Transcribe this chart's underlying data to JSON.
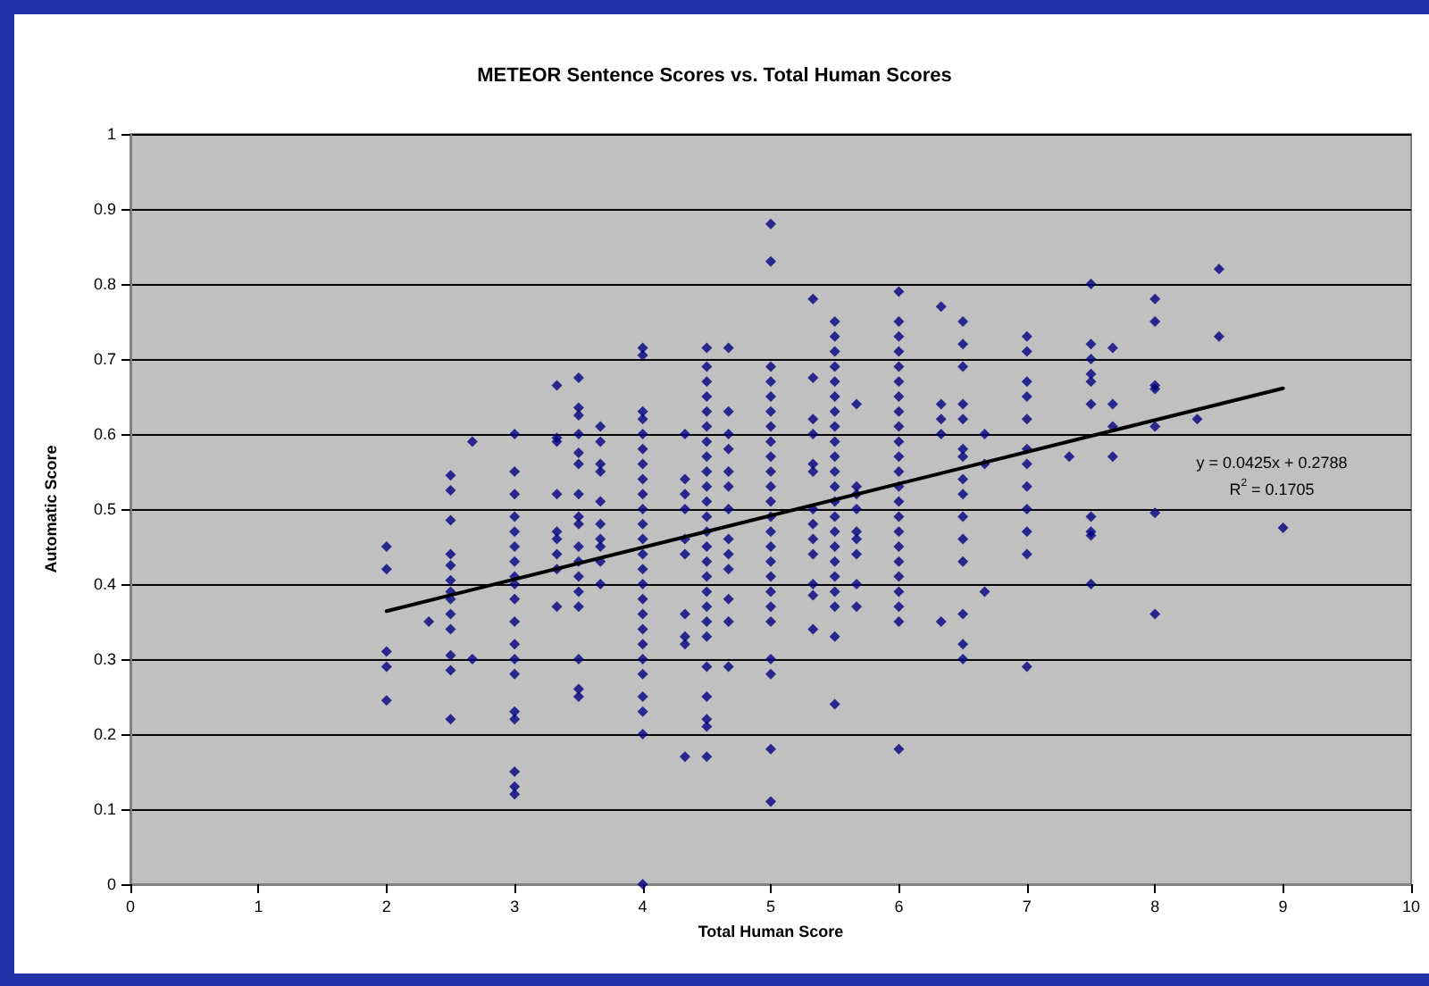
{
  "chart_data": {
    "type": "scatter",
    "title": "METEOR Sentence Scores vs. Total Human Scores",
    "xlabel": "Total Human Score",
    "ylabel": "Automatic Score",
    "xlim": [
      0,
      10
    ],
    "xticks": [
      0,
      1,
      2,
      3,
      4,
      5,
      6,
      7,
      8,
      9,
      10
    ],
    "ylim": [
      0,
      1
    ],
    "yticks": [
      0,
      0.1,
      0.2,
      0.3,
      0.4,
      0.5,
      0.6,
      0.7,
      0.8,
      0.9,
      1
    ],
    "grid": "y",
    "line_style": "solid",
    "annotations": [
      "y = 0.0425x + 0.2788",
      "R$^{2}$ = 0.1705"
    ],
    "series": [
      {
        "color": "#000080",
        "marker": "diamond",
        "x": [
          2,
          2,
          2,
          2,
          2,
          2.33,
          2.5,
          2.5,
          2.5,
          2.5,
          2.5,
          2.5,
          2.5,
          2.5,
          2.5,
          2.5,
          2.5,
          2.5,
          2.5,
          2.67,
          2.67,
          3,
          3,
          3,
          3,
          3,
          3,
          3,
          3,
          3,
          3,
          3,
          3,
          3,
          3,
          3,
          3,
          3,
          3,
          3,
          3.33,
          3.33,
          3.33,
          3.33,
          3.33,
          3.33,
          3.33,
          3.33,
          3.33,
          3.5,
          3.5,
          3.5,
          3.5,
          3.5,
          3.5,
          3.5,
          3.5,
          3.5,
          3.5,
          3.5,
          3.5,
          3.5,
          3.5,
          3.5,
          3.5,
          3.5,
          3.67,
          3.67,
          3.67,
          3.67,
          3.67,
          3.67,
          3.67,
          3.67,
          3.67,
          3.67,
          4,
          4,
          4,
          4,
          4,
          4,
          4,
          4,
          4,
          4,
          4,
          4,
          4,
          4,
          4,
          4,
          4,
          4,
          4,
          4,
          4,
          4,
          4,
          4,
          4,
          4.33,
          4.33,
          4.33,
          4.33,
          4.33,
          4.33,
          4.33,
          4.33,
          4.33,
          4.33,
          4.5,
          4.5,
          4.5,
          4.5,
          4.5,
          4.5,
          4.5,
          4.5,
          4.5,
          4.5,
          4.5,
          4.5,
          4.5,
          4.5,
          4.5,
          4.5,
          4.5,
          4.5,
          4.5,
          4.5,
          4.5,
          4.5,
          4.5,
          4.5,
          4.5,
          4.67,
          4.67,
          4.67,
          4.67,
          4.67,
          4.67,
          4.67,
          4.67,
          4.67,
          4.67,
          4.67,
          4.67,
          4.67,
          5,
          5,
          5,
          5,
          5,
          5,
          5,
          5,
          5,
          5,
          5,
          5,
          5,
          5,
          5,
          5,
          5,
          5,
          5,
          5,
          5,
          5,
          5,
          5,
          5.33,
          5.33,
          5.33,
          5.33,
          5.33,
          5.33,
          5.33,
          5.33,
          5.33,
          5.33,
          5.33,
          5.33,
          5.33,
          5.5,
          5.5,
          5.5,
          5.5,
          5.5,
          5.5,
          5.5,
          5.5,
          5.5,
          5.5,
          5.5,
          5.5,
          5.5,
          5.5,
          5.5,
          5.5,
          5.5,
          5.5,
          5.5,
          5.5,
          5.5,
          5.5,
          5.67,
          5.67,
          5.67,
          5.67,
          5.67,
          5.67,
          5.67,
          5.67,
          5.67,
          6,
          6,
          6,
          6,
          6,
          6,
          6,
          6,
          6,
          6,
          6,
          6,
          6,
          6,
          6,
          6,
          6,
          6,
          6,
          6,
          6,
          6,
          6,
          6.33,
          6.33,
          6.33,
          6.33,
          6.33,
          6.5,
          6.5,
          6.5,
          6.5,
          6.5,
          6.5,
          6.5,
          6.5,
          6.5,
          6.5,
          6.5,
          6.5,
          6.5,
          6.5,
          6.5,
          6.67,
          6.67,
          6.67,
          7,
          7,
          7,
          7,
          7,
          7,
          7,
          7,
          7,
          7,
          7,
          7,
          7.33,
          7.5,
          7.5,
          7.5,
          7.5,
          7.5,
          7.5,
          7.5,
          7.5,
          7.5,
          7.5,
          7.67,
          7.67,
          7.67,
          7.67,
          8,
          8,
          8,
          8,
          8,
          8,
          8,
          8.33,
          8.5,
          8.5,
          9
        ],
        "values": [
          0.45,
          0.42,
          0.31,
          0.29,
          0.245,
          0.35,
          0.545,
          0.525,
          0.485,
          0.44,
          0.425,
          0.405,
          0.39,
          0.38,
          0.36,
          0.34,
          0.305,
          0.285,
          0.22,
          0.59,
          0.3,
          0.6,
          0.55,
          0.52,
          0.49,
          0.47,
          0.45,
          0.43,
          0.41,
          0.4,
          0.38,
          0.35,
          0.32,
          0.3,
          0.28,
          0.23,
          0.22,
          0.15,
          0.13,
          0.12,
          0.665,
          0.595,
          0.59,
          0.52,
          0.47,
          0.46,
          0.44,
          0.42,
          0.37,
          0.675,
          0.635,
          0.625,
          0.6,
          0.575,
          0.56,
          0.52,
          0.49,
          0.48,
          0.45,
          0.43,
          0.41,
          0.39,
          0.37,
          0.3,
          0.26,
          0.25,
          0.61,
          0.59,
          0.56,
          0.55,
          0.51,
          0.48,
          0.46,
          0.45,
          0.43,
          0.4,
          0.715,
          0.705,
          0.63,
          0.62,
          0.6,
          0.58,
          0.56,
          0.54,
          0.52,
          0.5,
          0.48,
          0.46,
          0.44,
          0.42,
          0.4,
          0.38,
          0.36,
          0.34,
          0.32,
          0.3,
          0.28,
          0.25,
          0.23,
          0.2,
          0,
          0.6,
          0.54,
          0.52,
          0.5,
          0.46,
          0.44,
          0.36,
          0.33,
          0.32,
          0.17,
          0.715,
          0.69,
          0.67,
          0.65,
          0.63,
          0.61,
          0.59,
          0.57,
          0.55,
          0.53,
          0.51,
          0.49,
          0.47,
          0.45,
          0.43,
          0.41,
          0.39,
          0.37,
          0.35,
          0.33,
          0.29,
          0.25,
          0.22,
          0.21,
          0.17,
          0.715,
          0.63,
          0.6,
          0.58,
          0.55,
          0.53,
          0.5,
          0.46,
          0.44,
          0.42,
          0.38,
          0.35,
          0.29,
          0.88,
          0.83,
          0.69,
          0.67,
          0.65,
          0.63,
          0.61,
          0.59,
          0.57,
          0.55,
          0.53,
          0.51,
          0.49,
          0.47,
          0.45,
          0.43,
          0.41,
          0.39,
          0.37,
          0.35,
          0.3,
          0.28,
          0.18,
          0.11,
          0.78,
          0.675,
          0.62,
          0.6,
          0.56,
          0.55,
          0.5,
          0.48,
          0.46,
          0.44,
          0.4,
          0.385,
          0.34,
          0.75,
          0.73,
          0.71,
          0.69,
          0.67,
          0.65,
          0.63,
          0.61,
          0.59,
          0.57,
          0.55,
          0.53,
          0.51,
          0.49,
          0.47,
          0.45,
          0.43,
          0.41,
          0.39,
          0.37,
          0.33,
          0.24,
          0.64,
          0.53,
          0.52,
          0.5,
          0.47,
          0.46,
          0.44,
          0.4,
          0.37,
          0.79,
          0.75,
          0.73,
          0.71,
          0.69,
          0.67,
          0.65,
          0.63,
          0.61,
          0.59,
          0.57,
          0.55,
          0.53,
          0.51,
          0.49,
          0.47,
          0.45,
          0.43,
          0.41,
          0.39,
          0.37,
          0.35,
          0.18,
          0.77,
          0.64,
          0.62,
          0.6,
          0.35,
          0.75,
          0.72,
          0.69,
          0.64,
          0.62,
          0.58,
          0.57,
          0.54,
          0.52,
          0.49,
          0.46,
          0.43,
          0.36,
          0.32,
          0.3,
          0.6,
          0.56,
          0.39,
          0.73,
          0.71,
          0.67,
          0.65,
          0.62,
          0.58,
          0.56,
          0.53,
          0.5,
          0.47,
          0.44,
          0.29,
          0.57,
          0.8,
          0.72,
          0.7,
          0.68,
          0.67,
          0.64,
          0.49,
          0.47,
          0.465,
          0.4,
          0.715,
          0.64,
          0.61,
          0.57,
          0.78,
          0.75,
          0.665,
          0.66,
          0.61,
          0.495,
          0.36,
          0.62,
          0.82,
          0.73,
          0.475
        ]
      },
      {
        "type": "line",
        "marker": "none",
        "color": "#000000",
        "x": [
          2,
          9
        ],
        "values": [
          0.364,
          0.661
        ]
      }
    ]
  }
}
